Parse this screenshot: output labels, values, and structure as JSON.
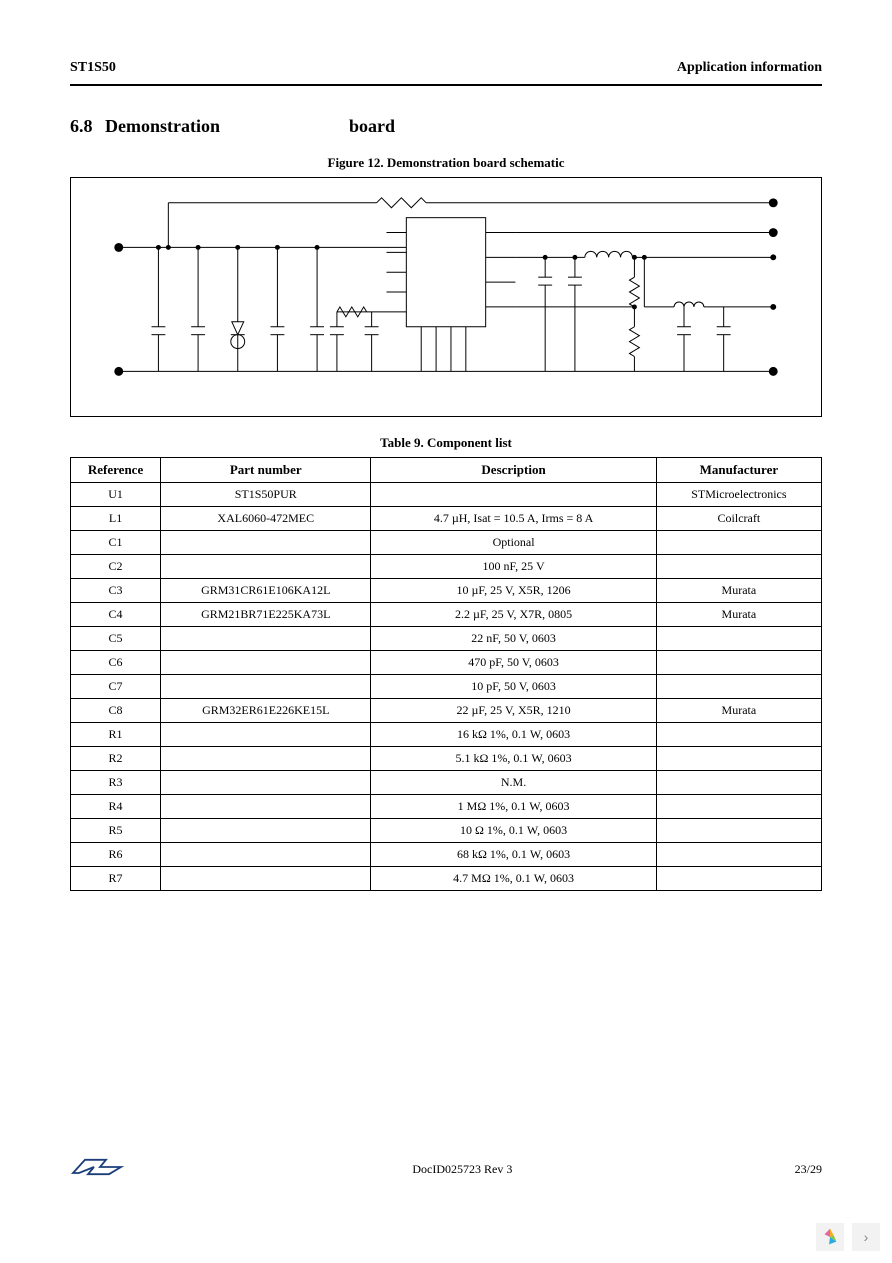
{
  "header": {
    "left": "ST1S50",
    "right": "Application information"
  },
  "section": {
    "number": "6.8",
    "word1": "Demonstration",
    "word2": "board"
  },
  "figure": {
    "caption": "Figure 12. Demonstration board schematic"
  },
  "schematic": {
    "stroke": "#000000",
    "wire_width": 1,
    "terminal_radius": 4,
    "node_radius": 2.5,
    "bg": "#ffffff"
  },
  "table": {
    "caption": "Table 9. Component list",
    "headers": [
      "Reference",
      "Part number",
      "Description",
      "Manufacturer"
    ],
    "rows": [
      {
        "ref": "U1",
        "part": "ST1S50PUR",
        "desc": "",
        "mfr": "STMicroelectronics"
      },
      {
        "ref": "L1",
        "part": "XAL6060-472MEC",
        "desc": "4.7 µH, Isat = 10.5 A, Irms = 8 A",
        "mfr": "Coilcraft"
      },
      {
        "ref": "C1",
        "part": "",
        "desc": "Optional",
        "mfr": ""
      },
      {
        "ref": "C2",
        "part": "",
        "desc": "100 nF, 25 V",
        "mfr": ""
      },
      {
        "ref": "C3",
        "part": "GRM31CR61E106KA12L",
        "desc": "10 µF, 25 V, X5R, 1206",
        "mfr": "Murata"
      },
      {
        "ref": "C4",
        "part": "GRM21BR71E225KA73L",
        "desc": "2.2 µF, 25 V, X7R, 0805",
        "mfr": "Murata"
      },
      {
        "ref": "C5",
        "part": "",
        "desc": "22 nF, 50 V, 0603",
        "mfr": ""
      },
      {
        "ref": "C6",
        "part": "",
        "desc": "470 pF, 50 V, 0603",
        "mfr": ""
      },
      {
        "ref": "C7",
        "part": "",
        "desc": "10 pF, 50 V, 0603",
        "mfr": ""
      },
      {
        "ref": "C8",
        "part": "GRM32ER61E226KE15L",
        "desc": "22 µF, 25 V, X5R, 1210",
        "mfr": "Murata"
      },
      {
        "ref": "R1",
        "part": "",
        "desc": "16 kΩ 1%, 0.1 W, 0603",
        "mfr": ""
      },
      {
        "ref": "R2",
        "part": "",
        "desc": "5.1 kΩ 1%, 0.1 W, 0603",
        "mfr": ""
      },
      {
        "ref": "R3",
        "part": "",
        "desc": "N.M.",
        "mfr": ""
      },
      {
        "ref": "R4",
        "part": "",
        "desc": "1 MΩ 1%, 0.1 W, 0603",
        "mfr": ""
      },
      {
        "ref": "R5",
        "part": "",
        "desc": "10 Ω 1%, 0.1 W, 0603",
        "mfr": ""
      },
      {
        "ref": "R6",
        "part": "",
        "desc": "68 kΩ 1%, 0.1 W, 0603",
        "mfr": ""
      },
      {
        "ref": "R7",
        "part": "",
        "desc": "4.7 MΩ 1%, 0.1 W, 0603",
        "mfr": ""
      }
    ]
  },
  "footer": {
    "docid": "DocID025723 Rev 3",
    "page": "23/29"
  }
}
